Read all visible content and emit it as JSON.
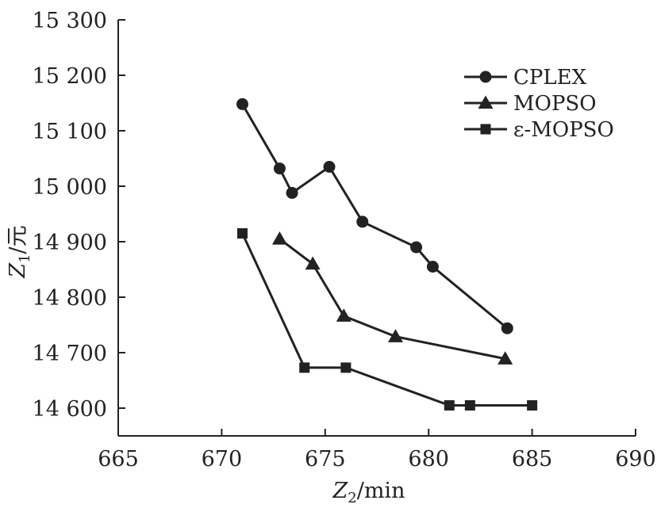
{
  "chart_data": {
    "type": "line",
    "xlabel_main": "Z",
    "xlabel_sub": "2",
    "xlabel_unit": "/min",
    "ylabel_main": "Z",
    "ylabel_sub": "1",
    "ylabel_unit": "/元",
    "xlim": [
      665,
      690
    ],
    "ylim": [
      14550,
      15300
    ],
    "x_ticks": [
      665,
      670,
      675,
      680,
      685,
      690
    ],
    "x_tick_labels": [
      "665",
      "670",
      "675",
      "680",
      "685",
      "690"
    ],
    "y_ticks": [
      14600,
      14700,
      14800,
      14900,
      15000,
      15100,
      15200,
      15300
    ],
    "y_tick_labels": [
      "14 600",
      "14 700",
      "14 800",
      "14 900",
      "15 000",
      "15 100",
      "15 200",
      "15 300"
    ],
    "legend_position": "top-right",
    "series": [
      {
        "name": "CPLEX",
        "marker": "circle",
        "x": [
          671.0,
          672.8,
          673.4,
          675.2,
          676.8,
          679.4,
          680.2,
          683.8
        ],
        "y": [
          15148,
          15032,
          14988,
          15035,
          14936,
          14890,
          14855,
          14744
        ]
      },
      {
        "name": "MOPSO",
        "marker": "triangle",
        "x": [
          672.8,
          674.4,
          675.9,
          678.4,
          683.7
        ],
        "y": [
          14905,
          14860,
          14766,
          14729,
          14689
        ]
      },
      {
        "name": "ε-MOPSO",
        "marker": "square",
        "x": [
          671.0,
          674.0,
          676.0,
          681.0,
          682.0,
          685.0
        ],
        "y": [
          14915,
          14673,
          14673,
          14605,
          14605,
          14605
        ]
      }
    ]
  }
}
